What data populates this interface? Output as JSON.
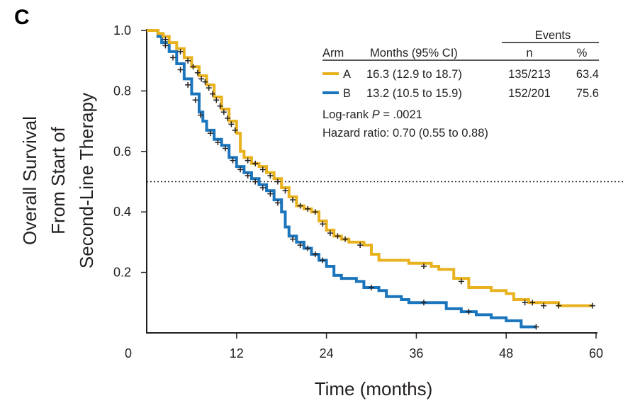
{
  "panel_label": "C",
  "chart_data": {
    "type": "line",
    "subtype": "kaplan-meier",
    "title": "",
    "xlabel": "Time (months)",
    "ylabel_lines": [
      "Overall Survival",
      "From Start of",
      "Second-Line Therapy"
    ],
    "xlim": [
      0,
      60
    ],
    "ylim": [
      0,
      1.0
    ],
    "x_ticks": [
      0,
      12,
      24,
      36,
      48,
      60
    ],
    "x_tick_labels": [
      "0",
      "12",
      "24",
      "36",
      "48",
      "60"
    ],
    "y_ticks": [
      0.2,
      0.4,
      0.6,
      0.8,
      1.0
    ],
    "y_tick_labels": [
      "0.2",
      "0.4",
      "0.6",
      "0.8",
      "1.0"
    ],
    "reference_line_y": 0.5,
    "grid": false,
    "series": [
      {
        "name": "A",
        "color": "#e8b21f",
        "steps": [
          [
            0,
            1.0
          ],
          [
            1.2,
            1.0
          ],
          [
            1.5,
            0.99
          ],
          [
            2.2,
            0.98
          ],
          [
            3,
            0.96
          ],
          [
            4,
            0.94
          ],
          [
            5,
            0.91
          ],
          [
            6,
            0.88
          ],
          [
            7,
            0.85
          ],
          [
            8,
            0.82
          ],
          [
            9,
            0.78
          ],
          [
            10,
            0.74
          ],
          [
            11,
            0.7
          ],
          [
            12,
            0.66
          ],
          [
            12.5,
            0.6
          ],
          [
            13,
            0.58
          ],
          [
            14,
            0.56
          ],
          [
            15,
            0.55
          ],
          [
            16,
            0.53
          ],
          [
            17,
            0.51
          ],
          [
            18,
            0.48
          ],
          [
            19,
            0.45
          ],
          [
            20,
            0.42
          ],
          [
            21,
            0.41
          ],
          [
            22,
            0.4
          ],
          [
            23,
            0.37
          ],
          [
            24,
            0.34
          ],
          [
            25,
            0.32
          ],
          [
            26,
            0.31
          ],
          [
            27,
            0.3
          ],
          [
            29,
            0.29
          ],
          [
            30,
            0.26
          ],
          [
            31,
            0.24
          ],
          [
            34,
            0.24
          ],
          [
            35,
            0.23
          ],
          [
            38,
            0.22
          ],
          [
            39,
            0.21
          ],
          [
            41,
            0.18
          ],
          [
            43,
            0.15
          ],
          [
            46,
            0.14
          ],
          [
            48,
            0.13
          ],
          [
            49,
            0.11
          ],
          [
            51,
            0.1
          ],
          [
            55,
            0.09
          ],
          [
            59.5,
            0.09
          ]
        ],
        "censored": [
          [
            2.5,
            0.97
          ],
          [
            4.5,
            0.93
          ],
          [
            5.5,
            0.9
          ],
          [
            6.2,
            0.88
          ],
          [
            6.8,
            0.86
          ],
          [
            7.3,
            0.84
          ],
          [
            7.8,
            0.83
          ],
          [
            8.3,
            0.81
          ],
          [
            8.8,
            0.79
          ],
          [
            9.3,
            0.77
          ],
          [
            9.8,
            0.75
          ],
          [
            10.3,
            0.73
          ],
          [
            10.8,
            0.71
          ],
          [
            11.3,
            0.69
          ],
          [
            11.8,
            0.67
          ],
          [
            13.5,
            0.57
          ],
          [
            14.5,
            0.56
          ],
          [
            15.5,
            0.54
          ],
          [
            16.5,
            0.52
          ],
          [
            17.5,
            0.5
          ],
          [
            18.5,
            0.47
          ],
          [
            19.5,
            0.44
          ],
          [
            20.5,
            0.42
          ],
          [
            21.5,
            0.41
          ],
          [
            22.5,
            0.4
          ],
          [
            23.5,
            0.36
          ],
          [
            24.5,
            0.33
          ],
          [
            25.5,
            0.32
          ],
          [
            26.5,
            0.31
          ],
          [
            28.5,
            0.29
          ],
          [
            37,
            0.22
          ],
          [
            42,
            0.17
          ],
          [
            50.5,
            0.1
          ],
          [
            51.5,
            0.1
          ],
          [
            53,
            0.09
          ],
          [
            55,
            0.09
          ],
          [
            59.5,
            0.09
          ]
        ]
      },
      {
        "name": "B",
        "color": "#1b75bc",
        "steps": [
          [
            0,
            1.0
          ],
          [
            1.0,
            1.0
          ],
          [
            1.5,
            0.98
          ],
          [
            2,
            0.96
          ],
          [
            3,
            0.93
          ],
          [
            4,
            0.89
          ],
          [
            5,
            0.84
          ],
          [
            6,
            0.79
          ],
          [
            7,
            0.73
          ],
          [
            7.5,
            0.7
          ],
          [
            8,
            0.67
          ],
          [
            9,
            0.64
          ],
          [
            10,
            0.62
          ],
          [
            11,
            0.58
          ],
          [
            12,
            0.55
          ],
          [
            13,
            0.53
          ],
          [
            14,
            0.51
          ],
          [
            15,
            0.49
          ],
          [
            16,
            0.47
          ],
          [
            17,
            0.44
          ],
          [
            18,
            0.4
          ],
          [
            18.5,
            0.35
          ],
          [
            19,
            0.32
          ],
          [
            20,
            0.3
          ],
          [
            21,
            0.28
          ],
          [
            22,
            0.26
          ],
          [
            23,
            0.24
          ],
          [
            24,
            0.22
          ],
          [
            25,
            0.19
          ],
          [
            26,
            0.18
          ],
          [
            28,
            0.17
          ],
          [
            29,
            0.15
          ],
          [
            31,
            0.14
          ],
          [
            32,
            0.12
          ],
          [
            34,
            0.11
          ],
          [
            35,
            0.1
          ],
          [
            39,
            0.1
          ],
          [
            40,
            0.08
          ],
          [
            42,
            0.07
          ],
          [
            44,
            0.06
          ],
          [
            46,
            0.05
          ],
          [
            48,
            0.04
          ],
          [
            50,
            0.02
          ],
          [
            52,
            0.02
          ]
        ],
        "censored": [
          [
            2.5,
            0.95
          ],
          [
            3.5,
            0.91
          ],
          [
            4.5,
            0.87
          ],
          [
            5.5,
            0.82
          ],
          [
            6.5,
            0.77
          ],
          [
            7.2,
            0.72
          ],
          [
            8.5,
            0.66
          ],
          [
            9.5,
            0.63
          ],
          [
            10.5,
            0.61
          ],
          [
            11.5,
            0.57
          ],
          [
            12.5,
            0.54
          ],
          [
            13.5,
            0.52
          ],
          [
            14.5,
            0.5
          ],
          [
            15.5,
            0.48
          ],
          [
            16.5,
            0.46
          ],
          [
            17.5,
            0.43
          ],
          [
            19.5,
            0.31
          ],
          [
            20.5,
            0.29
          ],
          [
            21.5,
            0.28
          ],
          [
            22.5,
            0.26
          ],
          [
            23.5,
            0.24
          ],
          [
            30,
            0.15
          ],
          [
            37,
            0.1
          ],
          [
            43,
            0.07
          ],
          [
            52,
            0.02
          ]
        ]
      }
    ],
    "legend": {
      "headers": {
        "arm": "Arm",
        "months": "Months (95% CI)",
        "events": "Events",
        "n": "n",
        "pct": "%"
      },
      "rows": [
        {
          "arm": "A",
          "months": "16.3 (12.9 to 18.7)",
          "n": "135/213",
          "pct": "63.4",
          "color": "#e8b21f"
        },
        {
          "arm": "B",
          "months": "13.2 (10.5 to 15.9)",
          "n": "152/201",
          "pct": "75.6",
          "color": "#1b75bc"
        }
      ]
    },
    "annotations": {
      "logrank_prefix": "Log-rank ",
      "logrank_p": "P",
      "logrank_value": " = .0021",
      "hazard_ratio": "Hazard ratio: 0.70 (0.55 to 0.88)"
    }
  }
}
